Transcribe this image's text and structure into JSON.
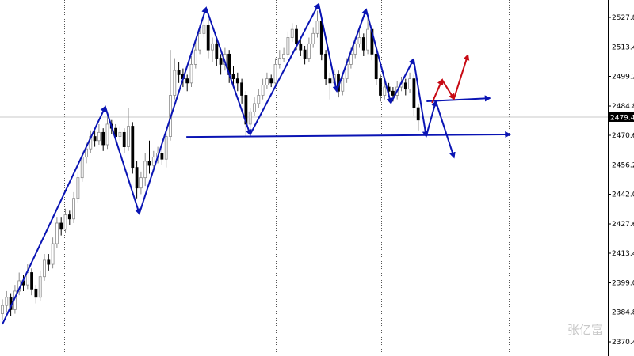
{
  "chart_data": {
    "type": "candlestick",
    "title": "",
    "y_ticks": [
      "2527.80",
      "2513.40",
      "2499.20",
      "2484.80",
      "2470.60",
      "2456.20",
      "2442.00",
      "2427.60",
      "2413.40",
      "2399.00",
      "2384.80",
      "2370.40"
    ],
    "ylim": [
      2365,
      2536
    ],
    "current_price": "2479.43",
    "grid": "vertical dotted separators only",
    "colors": {
      "bull_body": "#ffffff",
      "bull_outline": "#8c8c8c",
      "bear_body": "#000000",
      "zigzag": "#0a14b4",
      "projection": "#c80a14",
      "price_line": "#c8c8c8"
    },
    "candles_ohlc": [
      [
        2384,
        2391,
        2381,
        2388
      ],
      [
        2388,
        2395,
        2385,
        2392
      ],
      [
        2392,
        2394,
        2383,
        2386
      ],
      [
        2386,
        2398,
        2384,
        2395
      ],
      [
        2395,
        2404,
        2393,
        2400
      ],
      [
        2400,
        2403,
        2395,
        2398
      ],
      [
        2398,
        2408,
        2396,
        2404
      ],
      [
        2404,
        2406,
        2393,
        2396
      ],
      [
        2396,
        2398,
        2389,
        2392
      ],
      [
        2392,
        2405,
        2390,
        2402
      ],
      [
        2402,
        2413,
        2400,
        2410
      ],
      [
        2410,
        2413,
        2405,
        2408
      ],
      [
        2408,
        2421,
        2406,
        2418
      ],
      [
        2418,
        2431,
        2416,
        2428
      ],
      [
        2428,
        2431,
        2422,
        2425
      ],
      [
        2425,
        2435,
        2423,
        2432
      ],
      [
        2432,
        2434,
        2427,
        2430
      ],
      [
        2430,
        2443,
        2428,
        2440
      ],
      [
        2440,
        2453,
        2438,
        2450
      ],
      [
        2450,
        2463,
        2448,
        2460
      ],
      [
        2460,
        2467,
        2457,
        2464
      ],
      [
        2464,
        2473,
        2462,
        2470
      ],
      [
        2470,
        2473,
        2465,
        2468
      ],
      [
        2468,
        2476,
        2466,
        2472
      ],
      [
        2472,
        2474,
        2463,
        2466
      ],
      [
        2466,
        2481,
        2464,
        2476
      ],
      [
        2476,
        2478,
        2471,
        2474
      ],
      [
        2474,
        2476,
        2467,
        2470
      ],
      [
        2470,
        2475,
        2468,
        2472
      ],
      [
        2472,
        2474,
        2462,
        2465
      ],
      [
        2465,
        2484,
        2463,
        2475
      ],
      [
        2475,
        2477,
        2452,
        2455
      ],
      [
        2455,
        2458,
        2440,
        2445
      ],
      [
        2445,
        2453,
        2442,
        2450
      ],
      [
        2450,
        2462,
        2446,
        2458
      ],
      [
        2458,
        2468,
        2452,
        2456
      ],
      [
        2456,
        2463,
        2454,
        2460
      ],
      [
        2460,
        2465,
        2457,
        2462
      ],
      [
        2462,
        2464,
        2456,
        2459
      ],
      [
        2459,
        2473,
        2455,
        2470
      ],
      [
        2470,
        2512,
        2468,
        2490
      ],
      [
        2490,
        2508,
        2488,
        2502
      ],
      [
        2502,
        2506,
        2496,
        2500
      ],
      [
        2500,
        2503,
        2494,
        2498
      ],
      [
        2498,
        2500,
        2492,
        2496
      ],
      [
        2496,
        2509,
        2494,
        2505
      ],
      [
        2505,
        2516,
        2503,
        2512
      ],
      [
        2512,
        2524,
        2510,
        2520
      ],
      [
        2520,
        2532,
        2518,
        2524
      ],
      [
        2524,
        2527,
        2508,
        2512
      ],
      [
        2512,
        2518,
        2506,
        2515
      ],
      [
        2515,
        2517,
        2504,
        2508
      ],
      [
        2508,
        2510,
        2500,
        2505
      ],
      [
        2505,
        2513,
        2502,
        2510
      ],
      [
        2510,
        2512,
        2496,
        2500
      ],
      [
        2500,
        2504,
        2495,
        2498
      ],
      [
        2498,
        2501,
        2492,
        2496
      ],
      [
        2496,
        2498,
        2486,
        2490
      ],
      [
        2490,
        2492,
        2470,
        2476
      ],
      [
        2476,
        2484,
        2472,
        2482
      ],
      [
        2482,
        2489,
        2480,
        2486
      ],
      [
        2486,
        2493,
        2484,
        2490
      ],
      [
        2490,
        2498,
        2488,
        2495
      ],
      [
        2495,
        2501,
        2493,
        2498
      ],
      [
        2498,
        2500,
        2494,
        2496
      ],
      [
        2496,
        2508,
        2494,
        2505
      ],
      [
        2505,
        2512,
        2503,
        2508
      ],
      [
        2508,
        2513,
        2506,
        2510
      ],
      [
        2510,
        2521,
        2508,
        2518
      ],
      [
        2518,
        2525,
        2516,
        2522
      ],
      [
        2522,
        2524,
        2512,
        2515
      ],
      [
        2515,
        2517,
        2509,
        2512
      ],
      [
        2512,
        2514,
        2505,
        2508
      ],
      [
        2508,
        2518,
        2506,
        2515
      ],
      [
        2515,
        2523,
        2513,
        2520
      ],
      [
        2520,
        2531,
        2518,
        2526
      ],
      [
        2526,
        2528,
        2507,
        2510
      ],
      [
        2510,
        2512,
        2495,
        2498
      ],
      [
        2498,
        2501,
        2488,
        2496
      ],
      [
        2496,
        2503,
        2494,
        2500
      ],
      [
        2500,
        2502,
        2489,
        2492
      ],
      [
        2492,
        2501,
        2490,
        2498
      ],
      [
        2498,
        2508,
        2496,
        2505
      ],
      [
        2505,
        2513,
        2503,
        2510
      ],
      [
        2510,
        2518,
        2508,
        2515
      ],
      [
        2515,
        2522,
        2513,
        2518
      ],
      [
        2518,
        2520,
        2509,
        2512
      ],
      [
        2512,
        2528,
        2510,
        2522
      ],
      [
        2522,
        2524,
        2507,
        2510
      ],
      [
        2510,
        2512,
        2495,
        2498
      ],
      [
        2498,
        2500,
        2487,
        2490
      ],
      [
        2490,
        2497,
        2488,
        2494
      ],
      [
        2494,
        2496,
        2489,
        2492
      ],
      [
        2492,
        2494,
        2487,
        2490
      ],
      [
        2490,
        2497,
        2488,
        2494
      ],
      [
        2494,
        2499,
        2492,
        2496
      ],
      [
        2496,
        2498,
        2490,
        2493
      ],
      [
        2493,
        2501,
        2491,
        2498
      ],
      [
        2498,
        2500,
        2480,
        2484
      ],
      [
        2484,
        2486,
        2473,
        2478
      ]
    ],
    "annotations": {
      "zigzag": [
        [
          0,
          2378.9
        ],
        [
          24.5,
          2484.4
        ],
        [
          32.6,
          2432.6
        ],
        [
          48.5,
          2532.4
        ],
        [
          59,
          2471.0
        ],
        [
          75.3,
          2534.3
        ],
        [
          79.6,
          2492.1
        ],
        [
          86.6,
          2531.6
        ],
        [
          92.5,
          2486.3
        ],
        [
          97.9,
          2507.5
        ],
        [
          100.9,
          2470.2
        ]
      ],
      "support_line": [
        [
          43.8,
          2469.8
        ],
        [
          120.8,
          2471.0
        ]
      ],
      "short_line": [
        [
          101,
          2487.1
        ],
        [
          116,
          2488.6
        ]
      ],
      "blue_up_arrow": [
        [
          100.9,
          2470.2
        ],
        [
          103.2,
          2487.0
        ]
      ],
      "blue_down_arrow": [
        [
          103.2,
          2487.0
        ],
        [
          107.5,
          2460.0
        ]
      ],
      "red_path": [
        [
          102.3,
          2486.3
        ],
        [
          104.7,
          2497.5
        ],
        [
          107.5,
          2488.3
        ],
        [
          110.8,
          2509.4
        ]
      ]
    }
  },
  "watermark": "张亿富"
}
